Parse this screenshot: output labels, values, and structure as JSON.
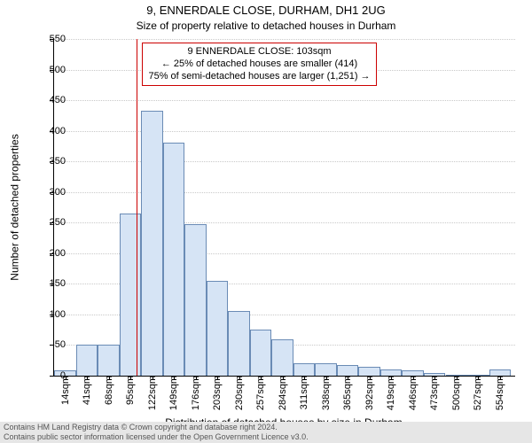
{
  "title": "9, ENNERDALE CLOSE, DURHAM, DH1 2UG",
  "subtitle": "Size of property relative to detached houses in Durham",
  "y_axis_title": "Number of detached properties",
  "x_axis_title": "Distribution of detached houses by size in Durham",
  "annotation": {
    "line1": "9 ENNERDALE CLOSE: 103sqm",
    "line2": "← 25% of detached houses are smaller (414)",
    "line3": "75% of semi-detached houses are larger (1,251) →",
    "border_color": "#cc0000"
  },
  "marker": {
    "x_value": 103,
    "color": "#cc0000"
  },
  "histogram": {
    "type": "histogram",
    "x_min": 0,
    "x_max": 573,
    "ylim": [
      0,
      550
    ],
    "ytick_step": 50,
    "x_tick_start": 14,
    "x_tick_step": 27,
    "x_tick_count": 21,
    "x_tick_suffix": "sqm",
    "bin_width": 27,
    "bar_fill": "#d6e4f5",
    "bar_border": "#6a8bb5",
    "grid_color": "#c9c9c9",
    "background": "#ffffff",
    "values": [
      8,
      50,
      50,
      265,
      433,
      380,
      248,
      155,
      105,
      75,
      60,
      20,
      20,
      18,
      15,
      10,
      8,
      5,
      2,
      2,
      10
    ]
  },
  "footer": {
    "line1": "Contains HM Land Registry data © Crown copyright and database right 2024.",
    "line2": "Contains public sector information licensed under the Open Government Licence v3.0.",
    "bg_color": "#e6e6e6",
    "text_color": "#555555"
  },
  "title_fontsize": 13,
  "subtitle_fontsize": 12,
  "axis_title_fontsize": 12,
  "tick_fontsize": 11
}
